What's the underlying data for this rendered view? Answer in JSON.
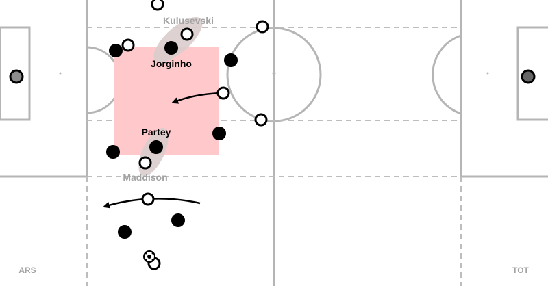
{
  "teams": {
    "left": {
      "name": "ARS",
      "color": "#000000"
    },
    "right": {
      "name": "TOT",
      "color": "#ffffff"
    }
  },
  "players": {
    "jorginho": {
      "name": "Jorginho",
      "team": "ARS"
    },
    "partey": {
      "name": "Partey",
      "team": "ARS"
    },
    "kulusevski": {
      "name": "Kulusevski",
      "team": "TOT"
    },
    "maddison": {
      "name": "Maddison",
      "team": "TOT"
    }
  },
  "colors": {
    "pitch_lines": "#b5b5b5",
    "zone_highlight": "#ffc9cc",
    "pair_highlight": "#d9cccc",
    "ars_player": "#000000",
    "tot_player": "#ffffff",
    "keeper": "#8c8c8c",
    "label_dark": "#000000",
    "label_muted": "#a3a3a3"
  },
  "icons": {
    "ball": "soccer-ball-icon",
    "movement_arrow": "arrow-icon"
  }
}
